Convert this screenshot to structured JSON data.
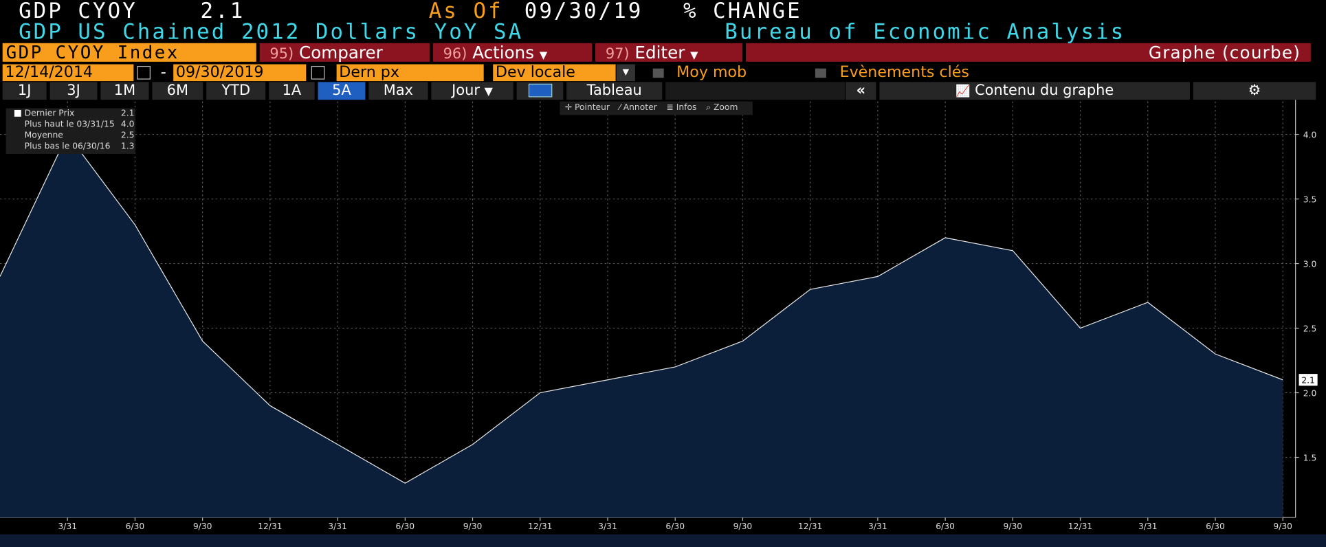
{
  "header": {
    "ticker": "GDP CYOY",
    "last": "2.1",
    "as_of_label": "As Of",
    "as_of": "09/30/19",
    "units": "% CHANGE",
    "description": "GDP US Chained 2012 Dollars YoY SA",
    "source": "Bureau of Economic Analysis"
  },
  "toolbar": {
    "security": "GDP CYOY Index",
    "buttons": [
      {
        "num": "95)",
        "label": "Comparer"
      },
      {
        "num": "96)",
        "label": "Actions"
      },
      {
        "num": "97)",
        "label": "Editer"
      }
    ],
    "view": "Graphe (courbe)"
  },
  "controls": {
    "start": "12/14/2014",
    "separator": "-",
    "end": "09/30/2019",
    "field": "Dern px",
    "currency": "Dev locale",
    "moving_avg": "Moy mob",
    "events": "Evènements clés"
  },
  "tabs": [
    "1J",
    "3J",
    "1M",
    "6M",
    "YTD",
    "1A",
    "5A",
    "Max"
  ],
  "period": "Jour",
  "table_tab": "Tableau",
  "content": "Contenu du graphe",
  "chart_tools": [
    "Pointeur",
    "Annoter",
    "Infos",
    "Zoom"
  ],
  "legend": [
    {
      "label": "Plus haut le 03/31/15",
      "value": "4.0"
    },
    {
      "label": "Moyenne",
      "value": "2.5"
    },
    {
      "label": "Plus bas le 06/30/16",
      "value": "1.3"
    }
  ],
  "chart_data": {
    "type": "area",
    "categories": [
      null,
      "3/31",
      "6/30",
      "9/30",
      "12/31",
      "3/31",
      "6/30",
      "9/30",
      "12/31",
      "3/31",
      "6/30",
      "9/30",
      "12/31",
      "3/31",
      "6/30",
      "9/30",
      "12/31",
      "3/31",
      "6/30",
      "9/30"
    ],
    "series": [
      {
        "name": "Dernier Prix",
        "color": "#e6e6e6",
        "fill": "#0b1f3a",
        "values": [
          2.9,
          4.0,
          3.3,
          2.4,
          1.9,
          1.6,
          1.3,
          1.6,
          2.0,
          2.1,
          2.2,
          2.4,
          2.8,
          2.9,
          3.2,
          3.1,
          2.5,
          2.7,
          2.3,
          2.1
        ]
      }
    ],
    "ylim": [
      1.035,
      4.255
    ],
    "yticks": [
      1.5,
      {
        "value": 2,
        "label": "2.0"
      },
      2.5,
      {
        "value": 3,
        "label": "3.0"
      },
      3.5,
      {
        "value": 4,
        "label": "4.0"
      }
    ],
    "grid": true
  }
}
